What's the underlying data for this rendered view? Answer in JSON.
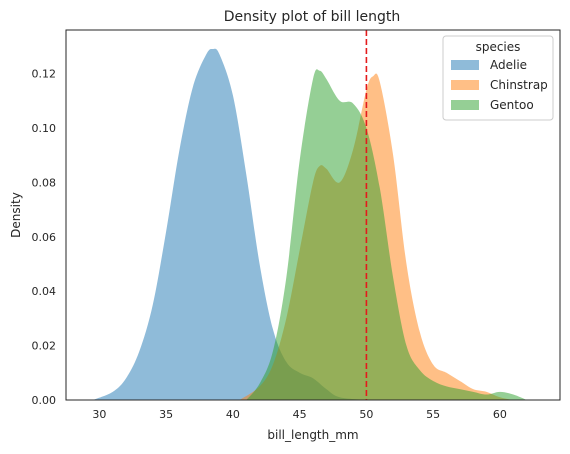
{
  "chart_data": {
    "type": "area",
    "title": "Density plot of bill length",
    "xlabel": "bill_length_mm",
    "ylabel": "Density",
    "xlim": [
      27.5,
      64.5
    ],
    "ylim": [
      0,
      0.136
    ],
    "x_ticks": [
      30,
      35,
      40,
      45,
      50,
      55,
      60
    ],
    "x_tick_labels": [
      "30",
      "35",
      "40",
      "45",
      "50",
      "55",
      "60"
    ],
    "y_ticks": [
      0.0,
      0.02,
      0.04,
      0.06,
      0.08,
      0.1,
      0.12
    ],
    "y_tick_labels": [
      "0.00",
      "0.02",
      "0.04",
      "0.06",
      "0.08",
      "0.10",
      "0.12"
    ],
    "grid": false,
    "legend": {
      "title": "species",
      "placement": "top-right"
    },
    "reference_line": {
      "x": 50,
      "color": "#e41a1c",
      "style": "dashed"
    },
    "series": [
      {
        "name": "Adelie",
        "color": "#1f77b4",
        "alpha": 0.5,
        "x": [
          29.5,
          31,
          32,
          33,
          34,
          35,
          36,
          37,
          38,
          38.5,
          39,
          40,
          41,
          42,
          43,
          44,
          45,
          46,
          47,
          48,
          50
        ],
        "y": [
          0.0,
          0.003,
          0.008,
          0.018,
          0.035,
          0.062,
          0.092,
          0.115,
          0.127,
          0.129,
          0.127,
          0.112,
          0.083,
          0.05,
          0.026,
          0.014,
          0.01,
          0.008,
          0.004,
          0.001,
          0.0
        ]
      },
      {
        "name": "Chinstrap",
        "color": "#ff7f0e",
        "alpha": 0.5,
        "x": [
          40.5,
          42,
          43,
          44,
          45,
          46,
          46.5,
          47,
          48,
          49,
          50,
          50.5,
          51,
          52,
          53,
          54,
          55,
          56,
          57,
          58,
          59,
          60,
          61
        ],
        "y": [
          0.0,
          0.005,
          0.013,
          0.03,
          0.055,
          0.08,
          0.086,
          0.085,
          0.08,
          0.092,
          0.114,
          0.119,
          0.117,
          0.09,
          0.05,
          0.025,
          0.013,
          0.01,
          0.007,
          0.004,
          0.003,
          0.001,
          0.0
        ]
      },
      {
        "name": "Gentoo",
        "color": "#2ca02c",
        "alpha": 0.5,
        "x": [
          41,
          42,
          43,
          44,
          45,
          46,
          46.5,
          47,
          48,
          49,
          50,
          51,
          52,
          53,
          54,
          55,
          56,
          57,
          58,
          59,
          60,
          61,
          62
        ],
        "y": [
          0.0,
          0.006,
          0.018,
          0.045,
          0.088,
          0.118,
          0.121,
          0.118,
          0.11,
          0.109,
          0.1,
          0.078,
          0.045,
          0.02,
          0.011,
          0.007,
          0.005,
          0.004,
          0.003,
          0.002,
          0.003,
          0.002,
          0.0
        ]
      }
    ]
  }
}
